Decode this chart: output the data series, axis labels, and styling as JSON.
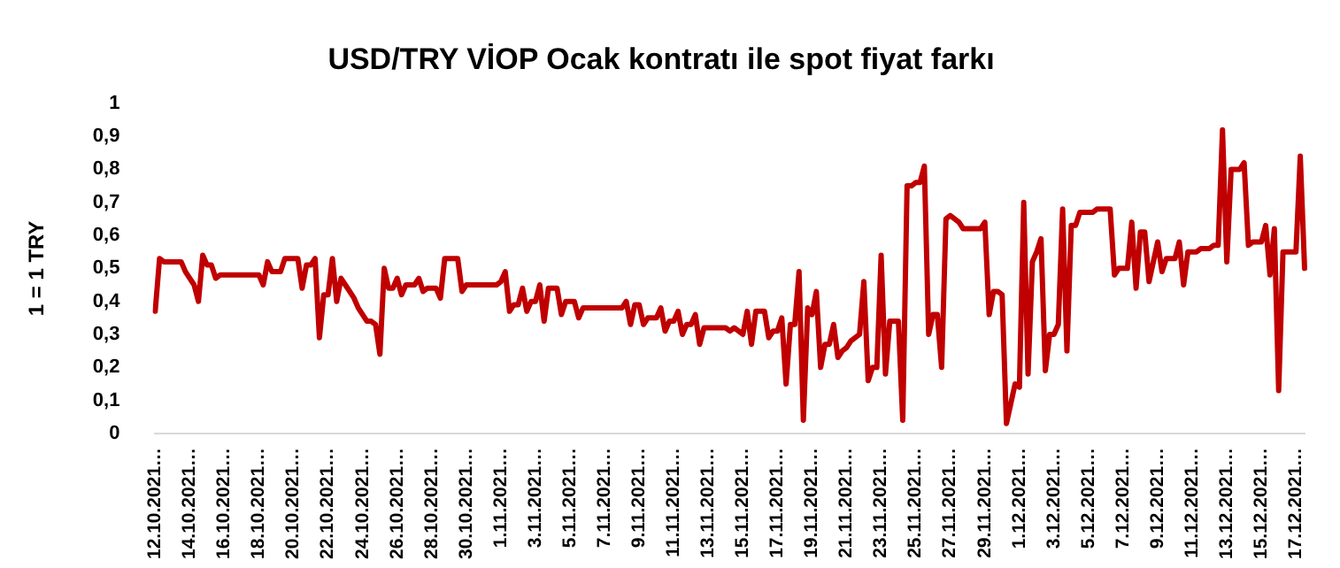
{
  "chart_data": {
    "type": "line",
    "title": "USD/TRY VİOP Ocak kontratı ile spot fiyat farkı",
    "ylabel": "1 = 1 TRY",
    "categories": [
      "12.10.2021…",
      null,
      null,
      null,
      null,
      null,
      null,
      null,
      "14.10.2021…",
      null,
      null,
      null,
      null,
      null,
      null,
      null,
      "16.10.2021…",
      null,
      null,
      null,
      null,
      null,
      null,
      null,
      "18.10.2021…",
      null,
      null,
      null,
      null,
      null,
      null,
      null,
      "20.10.2021…",
      null,
      null,
      null,
      null,
      null,
      null,
      null,
      "22.10.2021…",
      null,
      null,
      null,
      null,
      null,
      null,
      null,
      "24.10.2021…",
      null,
      null,
      null,
      null,
      null,
      null,
      null,
      "26.10.2021…",
      null,
      null,
      null,
      null,
      null,
      null,
      null,
      "28.10.2021…",
      null,
      null,
      null,
      null,
      null,
      null,
      null,
      "30.10.2021…",
      null,
      null,
      null,
      null,
      null,
      null,
      null,
      "1.11.2021…",
      null,
      null,
      null,
      null,
      null,
      null,
      null,
      "3.11.2021…",
      null,
      null,
      null,
      null,
      null,
      null,
      null,
      "5.11.2021…",
      null,
      null,
      null,
      null,
      null,
      null,
      null,
      "7.11.2021…",
      null,
      null,
      null,
      null,
      null,
      null,
      null,
      "9.11.2021…",
      null,
      null,
      null,
      null,
      null,
      null,
      null,
      "11.11.2021…",
      null,
      null,
      null,
      null,
      null,
      null,
      null,
      "13.11.2021…",
      null,
      null,
      null,
      null,
      null,
      null,
      null,
      "15.11.2021…",
      null,
      null,
      null,
      null,
      null,
      null,
      null,
      "17.11.2021…",
      null,
      null,
      null,
      null,
      null,
      null,
      null,
      "19.11.2021…",
      null,
      null,
      null,
      null,
      null,
      null,
      null,
      "21.11.2021…",
      null,
      null,
      null,
      null,
      null,
      null,
      null,
      "23.11.2021…",
      null,
      null,
      null,
      null,
      null,
      null,
      null,
      "25.11.2021…",
      null,
      null,
      null,
      null,
      null,
      null,
      null,
      "27.11.2021…",
      null,
      null,
      null,
      null,
      null,
      null,
      null,
      "29.11.2021…",
      null,
      null,
      null,
      null,
      null,
      null,
      null,
      "1.12.2021…",
      null,
      null,
      null,
      null,
      null,
      null,
      null,
      "3.12.2021…",
      null,
      null,
      null,
      null,
      null,
      null,
      null,
      "5.12.2021…",
      null,
      null,
      null,
      null,
      null,
      null,
      null,
      "7.12.2021…",
      null,
      null,
      null,
      null,
      null,
      null,
      null,
      "9.12.2021…",
      null,
      null,
      null,
      null,
      null,
      null,
      null,
      "11.12.2021…",
      null,
      null,
      null,
      null,
      null,
      null,
      null,
      "13.12.2021…",
      null,
      null,
      null,
      null,
      null,
      null,
      null,
      "15.12.2021…",
      null,
      null,
      null,
      null,
      null,
      null,
      null,
      "17.12.2021…",
      null,
      null
    ],
    "series": [
      {
        "color": "#c00000",
        "values": [
          0.37,
          0.53,
          0.52,
          0.52,
          0.52,
          0.52,
          0.52,
          0.49,
          0.47,
          0.45,
          0.4,
          0.54,
          0.51,
          0.51,
          0.47,
          0.48,
          0.48,
          0.48,
          0.48,
          0.48,
          0.48,
          0.48,
          0.48,
          0.48,
          0.48,
          0.45,
          0.52,
          0.49,
          0.49,
          0.49,
          0.53,
          0.53,
          0.53,
          0.53,
          0.44,
          0.51,
          0.51,
          0.53,
          0.29,
          0.42,
          0.42,
          0.53,
          0.4,
          0.47,
          0.45,
          0.43,
          0.41,
          0.38,
          0.36,
          0.34,
          0.34,
          0.33,
          0.24,
          0.5,
          0.44,
          0.44,
          0.47,
          0.42,
          0.45,
          0.45,
          0.45,
          0.47,
          0.43,
          0.44,
          0.44,
          0.44,
          0.41,
          0.53,
          0.53,
          0.53,
          0.53,
          0.43,
          0.45,
          0.45,
          0.45,
          0.45,
          0.45,
          0.45,
          0.45,
          0.45,
          0.46,
          0.49,
          0.37,
          0.39,
          0.39,
          0.44,
          0.37,
          0.4,
          0.4,
          0.45,
          0.34,
          0.44,
          0.44,
          0.44,
          0.36,
          0.4,
          0.4,
          0.4,
          0.35,
          0.38,
          0.38,
          0.38,
          0.38,
          0.38,
          0.38,
          0.38,
          0.38,
          0.38,
          0.38,
          0.4,
          0.33,
          0.39,
          0.39,
          0.33,
          0.35,
          0.35,
          0.35,
          0.38,
          0.31,
          0.34,
          0.34,
          0.37,
          0.3,
          0.33,
          0.33,
          0.36,
          0.27,
          0.32,
          0.32,
          0.32,
          0.32,
          0.32,
          0.32,
          0.31,
          0.32,
          0.31,
          0.3,
          0.37,
          0.27,
          0.37,
          0.37,
          0.37,
          0.29,
          0.31,
          0.31,
          0.35,
          0.15,
          0.33,
          0.33,
          0.49,
          0.04,
          0.38,
          0.36,
          0.43,
          0.2,
          0.27,
          0.27,
          0.33,
          0.23,
          0.25,
          0.26,
          0.28,
          0.29,
          0.3,
          0.46,
          0.16,
          0.2,
          0.2,
          0.54,
          0.18,
          0.34,
          0.34,
          0.34,
          0.04,
          0.75,
          0.75,
          0.76,
          0.76,
          0.81,
          0.3,
          0.36,
          0.36,
          0.2,
          0.65,
          0.66,
          0.65,
          0.64,
          0.62,
          0.62,
          0.62,
          0.62,
          0.62,
          0.64,
          0.36,
          0.43,
          0.43,
          0.42,
          0.03,
          0.09,
          0.15,
          0.14,
          0.7,
          0.18,
          0.52,
          0.55,
          0.59,
          0.19,
          0.3,
          0.3,
          0.33,
          0.68,
          0.25,
          0.63,
          0.63,
          0.67,
          0.67,
          0.67,
          0.67,
          0.68,
          0.68,
          0.68,
          0.68,
          0.48,
          0.5,
          0.5,
          0.5,
          0.64,
          0.44,
          0.61,
          0.61,
          0.46,
          0.52,
          0.58,
          0.49,
          0.53,
          0.53,
          0.53,
          0.58,
          0.45,
          0.55,
          0.55,
          0.55,
          0.56,
          0.56,
          0.56,
          0.57,
          0.57,
          0.92,
          0.52,
          0.8,
          0.8,
          0.8,
          0.82,
          0.57,
          0.58,
          0.58,
          0.58,
          0.63,
          0.48,
          0.62,
          0.13,
          0.55,
          0.55,
          0.55,
          0.55,
          0.84,
          0.5
        ]
      }
    ],
    "ylim": [
      0,
      1
    ],
    "yticks": [
      0,
      {
        "value": 0.1,
        "label": "0,1"
      },
      {
        "value": 0.2,
        "label": "0,2"
      },
      {
        "value": 0.3,
        "label": "0,3"
      },
      {
        "value": 0.4,
        "label": "0,4"
      },
      {
        "value": 0.5,
        "label": "0,5"
      },
      {
        "value": 0.6,
        "label": "0,6"
      },
      {
        "value": 0.7,
        "label": "0,7"
      },
      {
        "value": 0.8,
        "label": "0,8"
      },
      {
        "value": 0.9,
        "label": "0,9"
      },
      1
    ],
    "grid": false,
    "legend": false,
    "marker": "none",
    "line_style": "solid"
  }
}
